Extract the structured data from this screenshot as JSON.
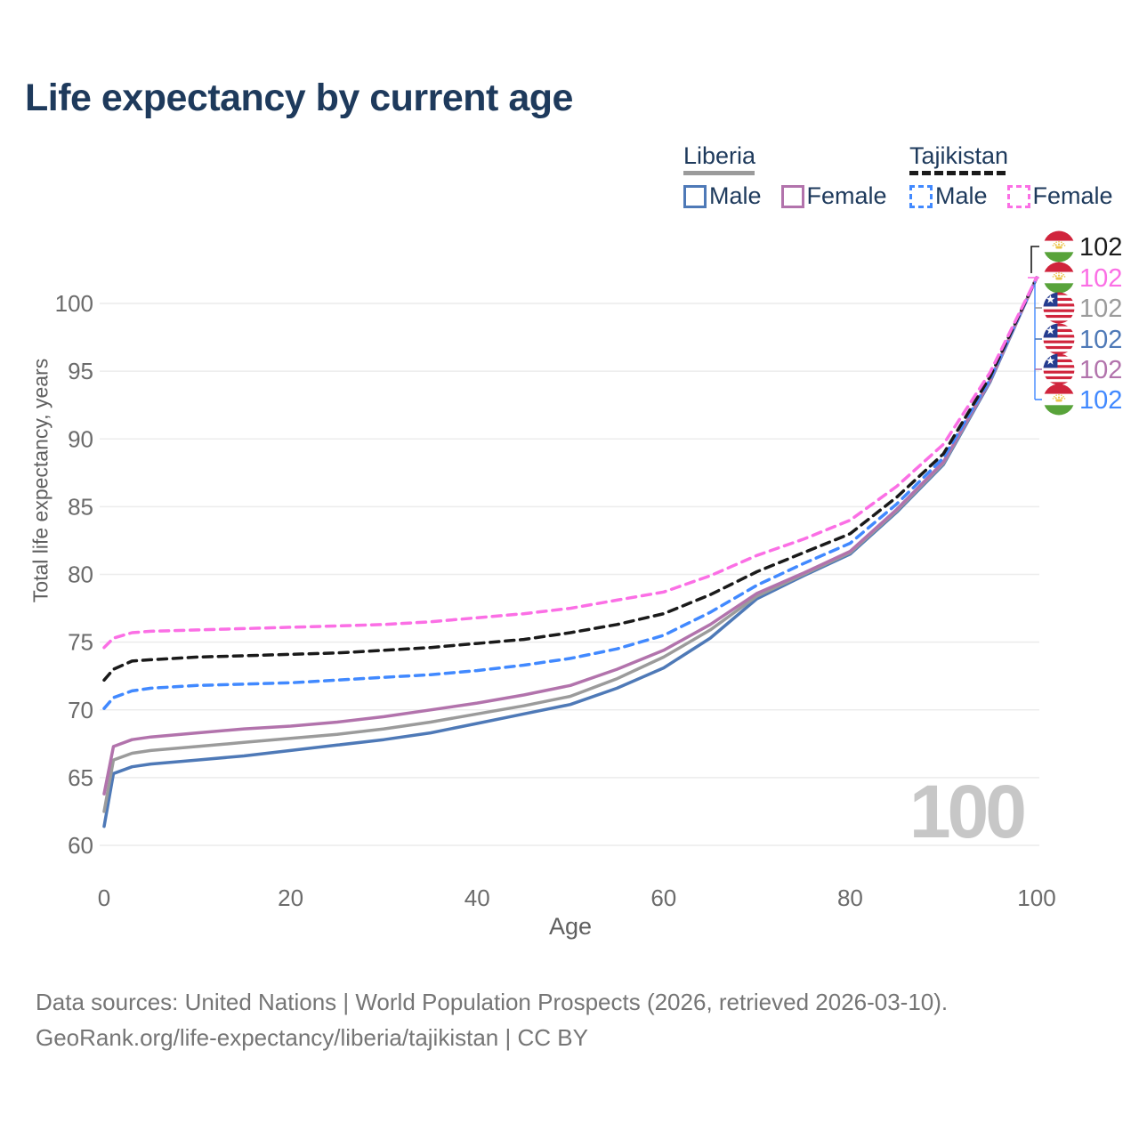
{
  "title": "Life expectancy by current age",
  "legend": {
    "groups": [
      {
        "country": "Liberia",
        "underline_style": "solid",
        "underline_color": "#9b9b9b",
        "items": [
          {
            "label": "Male",
            "color": "#4e79b7"
          },
          {
            "label": "Female",
            "color": "#b273ac"
          }
        ]
      },
      {
        "country": "Tajikistan",
        "underline_style": "dashed",
        "underline_color": "#1a1a1a",
        "items": [
          {
            "label": "Male",
            "color": "#4189ff"
          },
          {
            "label": "Female",
            "color": "#fb6fe5"
          }
        ]
      }
    ]
  },
  "hover_readout": {
    "age": "100"
  },
  "footer": {
    "line1": "Data sources: United Nations | World Population Prospects (2026, retrieved 2026-03-10).",
    "line2": "GeoRank.org/life-expectancy/liberia/tajikistan | CC BY"
  },
  "colors": {
    "title_text": "#1e3a5c",
    "axis_text": "#6b6b6b",
    "axis_title_text": "#5f5f5f",
    "gridline": "#ececec",
    "watermark": "#c7c7c7",
    "footer_text": "#757575"
  },
  "chart_data": {
    "type": "line",
    "title": "Life expectancy by current age",
    "xlabel": "Age",
    "ylabel": "Total life expectancy, years",
    "xlim": [
      0,
      100
    ],
    "ylim": [
      60,
      102
    ],
    "x_ticks": [
      0,
      20,
      40,
      60,
      80,
      100
    ],
    "y_ticks": [
      60,
      65,
      70,
      75,
      80,
      85,
      90,
      95,
      100
    ],
    "grid": true,
    "legend_position": "top-right",
    "x": [
      0,
      1,
      3,
      5,
      10,
      15,
      20,
      25,
      30,
      35,
      40,
      45,
      50,
      55,
      60,
      65,
      70,
      75,
      80,
      85,
      90,
      95,
      100
    ],
    "series": [
      {
        "name": "Liberia Male",
        "country": "Liberia",
        "sex": "male",
        "color": "#4e79b7",
        "dashed": false,
        "end_label": "102",
        "values": [
          61.4,
          65.3,
          65.8,
          66.0,
          66.3,
          66.6,
          67.0,
          67.4,
          67.8,
          68.3,
          69.0,
          69.7,
          70.4,
          71.6,
          73.1,
          75.3,
          78.2,
          79.9,
          81.5,
          84.6,
          88.1,
          94.2,
          101.9
        ]
      },
      {
        "name": "Liberia Total",
        "country": "Liberia",
        "sex": "total",
        "color": "#9b9b9b",
        "dashed": false,
        "end_label": "102",
        "values": [
          62.5,
          66.3,
          66.8,
          67.0,
          67.3,
          67.6,
          67.9,
          68.2,
          68.6,
          69.1,
          69.7,
          70.3,
          71.0,
          72.3,
          73.9,
          75.9,
          78.4,
          80.0,
          81.6,
          84.7,
          88.2,
          94.3,
          101.9
        ]
      },
      {
        "name": "Liberia Female",
        "country": "Liberia",
        "sex": "female",
        "color": "#b273ac",
        "dashed": false,
        "end_label": "102",
        "values": [
          63.8,
          67.3,
          67.8,
          68.0,
          68.3,
          68.6,
          68.8,
          69.1,
          69.5,
          70.0,
          70.5,
          71.1,
          71.8,
          73.0,
          74.4,
          76.3,
          78.6,
          80.1,
          81.7,
          84.8,
          88.3,
          94.3,
          101.9
        ]
      },
      {
        "name": "Tajikistan Male",
        "country": "Tajikistan",
        "sex": "male",
        "color": "#4189ff",
        "dashed": true,
        "end_label": "102",
        "values": [
          70.1,
          70.9,
          71.4,
          71.6,
          71.8,
          71.9,
          72.0,
          72.2,
          72.4,
          72.6,
          72.9,
          73.3,
          73.8,
          74.5,
          75.5,
          77.2,
          79.2,
          80.8,
          82.3,
          85.2,
          88.6,
          94.4,
          101.9
        ]
      },
      {
        "name": "Tajikistan Total",
        "country": "Tajikistan",
        "sex": "total",
        "color": "#1a1a1a",
        "dashed": true,
        "end_label": "102",
        "values": [
          72.2,
          73.0,
          73.6,
          73.7,
          73.9,
          74.0,
          74.1,
          74.2,
          74.4,
          74.6,
          74.9,
          75.2,
          75.7,
          76.3,
          77.1,
          78.5,
          80.2,
          81.6,
          83.0,
          85.7,
          88.9,
          94.6,
          101.9
        ]
      },
      {
        "name": "Tajikistan Female",
        "country": "Tajikistan",
        "sex": "female",
        "color": "#fb6fe5",
        "dashed": true,
        "end_label": "102",
        "values": [
          74.6,
          75.3,
          75.7,
          75.8,
          75.9,
          76.0,
          76.1,
          76.2,
          76.3,
          76.5,
          76.8,
          77.1,
          77.5,
          78.1,
          78.7,
          79.9,
          81.4,
          82.6,
          84.0,
          86.5,
          89.6,
          94.9,
          101.9
        ]
      }
    ],
    "end_label_order": [
      "Tajikistan Total",
      "Tajikistan Female",
      "Liberia Total",
      "Liberia Male",
      "Liberia Female",
      "Tajikistan Male"
    ]
  }
}
